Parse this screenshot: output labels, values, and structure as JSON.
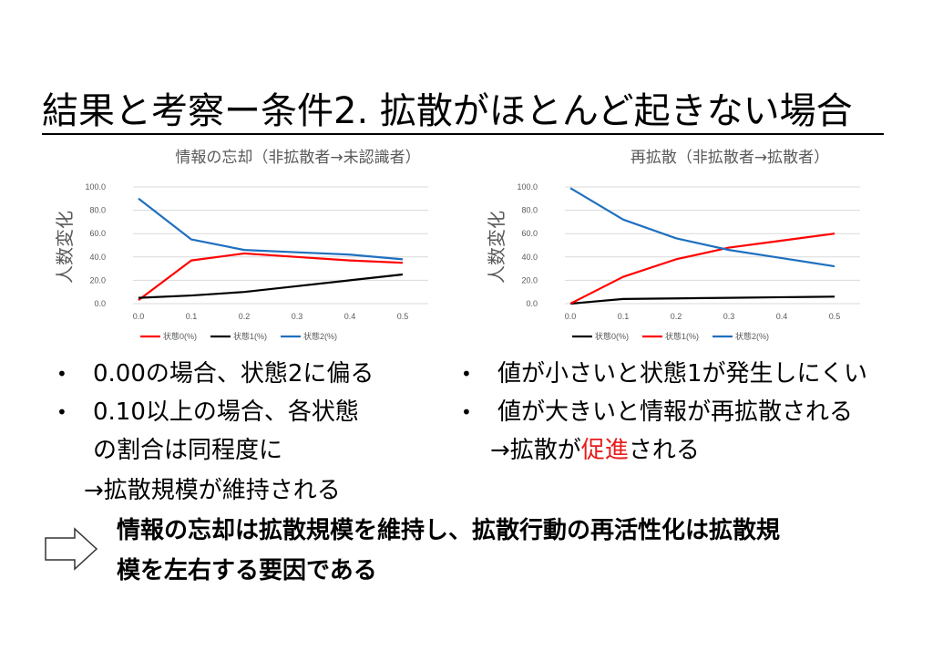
{
  "slide": {
    "title": "結果と考察ー条件2. 拡散がほとんど起きない場合"
  },
  "chart_data": [
    {
      "type": "line",
      "title": "情報の忘却（非拡散者→未認識者）",
      "ylabel": "人数変化",
      "x": [
        "0.0",
        "0.1",
        "0.2",
        "0.3",
        "0.4",
        "0.5"
      ],
      "ylim": [
        0,
        100
      ],
      "yticks": [
        "0.0",
        "20.0",
        "40.0",
        "60.0",
        "80.0",
        "100.0"
      ],
      "grid": true,
      "legend": "bottom",
      "series": [
        {
          "name": "状態0(%)",
          "color": "#ff0000",
          "values": [
            3,
            37,
            43,
            40,
            37,
            35
          ]
        },
        {
          "name": "状態1(%)",
          "color": "#000000",
          "values": [
            5,
            7,
            10,
            15,
            20,
            25
          ]
        },
        {
          "name": "状態2(%)",
          "color": "#1f6fbf",
          "values": [
            90,
            55,
            46,
            44,
            42,
            38
          ]
        }
      ]
    },
    {
      "type": "line",
      "title": "再拡散（非拡散者→拡散者）",
      "ylabel": "人数変化",
      "x": [
        "0.0",
        "0.1",
        "0.2",
        "0.3",
        "0.4",
        "0.5"
      ],
      "ylim": [
        0,
        100
      ],
      "yticks": [
        "0.0",
        "20.0",
        "40.0",
        "60.0",
        "80.0",
        "100.0"
      ],
      "grid": true,
      "legend": "bottom",
      "series": [
        {
          "name": "状態0(%)",
          "color": "#000000",
          "values": [
            0,
            4,
            4.5,
            5,
            5.5,
            6
          ]
        },
        {
          "name": "状態1(%)",
          "color": "#ff0000",
          "values": [
            0,
            23,
            38,
            48,
            54,
            60
          ]
        },
        {
          "name": "状態2(%)",
          "color": "#1f6fbf",
          "values": [
            99,
            72,
            56,
            46,
            39,
            32
          ]
        }
      ]
    }
  ],
  "bullets_left": {
    "b1": "0.00の場合、状態2に偏る",
    "b2_l1": "0.10以上の場合、各状態",
    "b2_l2": "の割合は同程度に",
    "b2_l3": "→拡散規模が維持される"
  },
  "bullets_right": {
    "b1": "値が小さいと状態1が発生しにくい",
    "b2": "値が大きいと情報が再拡散される",
    "b3_pre": "→拡散が",
    "b3_red": "促進",
    "b3_post": "される"
  },
  "bullet_char": "•",
  "conclusion": {
    "line1": "情報の忘却は拡散規模を維持し、拡散行動の再活性化は拡散規",
    "line2": "模を左右する要因である"
  }
}
